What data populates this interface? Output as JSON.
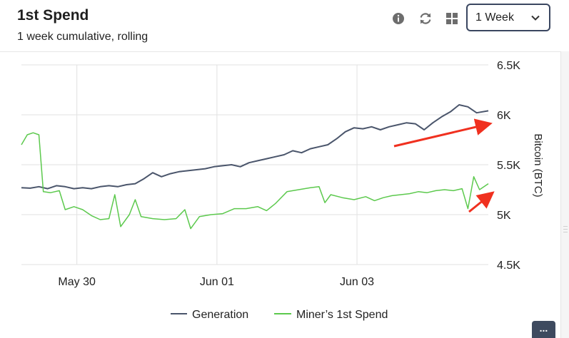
{
  "header": {
    "title": "1st Spend",
    "subtitle": "1 week cumulative, rolling",
    "period_select": {
      "value": "1 Week"
    },
    "icons": [
      "info-icon",
      "refresh-icon",
      "grid-icon",
      "chevron-down-icon"
    ]
  },
  "colors": {
    "generation": "#4a556b",
    "miners_first_spend": "#5cc94d",
    "annotation_arrow": "#f0301f",
    "grid": "#e2e2e2",
    "select_border": "#3a4660"
  },
  "more_button": {
    "label": "..."
  },
  "chart_data": {
    "type": "line",
    "title": "1st Spend",
    "subtitle": "1 week cumulative, rolling",
    "xlabel": "",
    "ylabel": "Bitcoin (BTC)",
    "ylim": [
      4500,
      6500
    ],
    "xlim": [
      "2022-05-29T05:00",
      "2022-06-04T21:00"
    ],
    "x_ticks": [
      {
        "x": "2022-05-30T00:00",
        "label": "May 30"
      },
      {
        "x": "2022-06-01T00:00",
        "label": "Jun 01"
      },
      {
        "x": "2022-06-03T00:00",
        "label": "Jun 03"
      }
    ],
    "y_ticks": [
      {
        "y": 4500,
        "label": "4.5K"
      },
      {
        "y": 5000,
        "label": "5K"
      },
      {
        "y": 5500,
        "label": "5.5K"
      },
      {
        "y": 6000,
        "label": "6K"
      },
      {
        "y": 6500,
        "label": "6.5K"
      }
    ],
    "grid": true,
    "legend": {
      "placement": "bottom-center"
    },
    "series": [
      {
        "name": "Generation",
        "color": "#4a556b",
        "points": [
          [
            "2022-05-29T05:00",
            5270
          ],
          [
            "2022-05-29T08:00",
            5265
          ],
          [
            "2022-05-29T11:00",
            5280
          ],
          [
            "2022-05-29T14:00",
            5260
          ],
          [
            "2022-05-29T17:00",
            5290
          ],
          [
            "2022-05-29T20:00",
            5280
          ],
          [
            "2022-05-29T23:00",
            5260
          ],
          [
            "2022-05-30T02:00",
            5270
          ],
          [
            "2022-05-30T05:00",
            5260
          ],
          [
            "2022-05-30T08:00",
            5280
          ],
          [
            "2022-05-30T11:00",
            5290
          ],
          [
            "2022-05-30T14:00",
            5280
          ],
          [
            "2022-05-30T17:00",
            5300
          ],
          [
            "2022-05-30T20:00",
            5310
          ],
          [
            "2022-05-30T23:00",
            5360
          ],
          [
            "2022-05-31T02:00",
            5420
          ],
          [
            "2022-05-31T05:00",
            5380
          ],
          [
            "2022-05-31T08:00",
            5410
          ],
          [
            "2022-05-31T11:00",
            5430
          ],
          [
            "2022-05-31T14:00",
            5440
          ],
          [
            "2022-05-31T17:00",
            5450
          ],
          [
            "2022-05-31T20:00",
            5460
          ],
          [
            "2022-05-31T23:00",
            5480
          ],
          [
            "2022-06-01T02:00",
            5490
          ],
          [
            "2022-06-01T05:00",
            5500
          ],
          [
            "2022-06-01T08:00",
            5480
          ],
          [
            "2022-06-01T11:00",
            5520
          ],
          [
            "2022-06-01T14:00",
            5540
          ],
          [
            "2022-06-01T17:00",
            5560
          ],
          [
            "2022-06-01T20:00",
            5580
          ],
          [
            "2022-06-01T23:00",
            5600
          ],
          [
            "2022-06-02T02:00",
            5640
          ],
          [
            "2022-06-02T05:00",
            5620
          ],
          [
            "2022-06-02T08:00",
            5660
          ],
          [
            "2022-06-02T11:00",
            5680
          ],
          [
            "2022-06-02T14:00",
            5700
          ],
          [
            "2022-06-02T17:00",
            5760
          ],
          [
            "2022-06-02T20:00",
            5830
          ],
          [
            "2022-06-02T23:00",
            5870
          ],
          [
            "2022-06-03T02:00",
            5860
          ],
          [
            "2022-06-03T05:00",
            5880
          ],
          [
            "2022-06-03T08:00",
            5850
          ],
          [
            "2022-06-03T11:00",
            5880
          ],
          [
            "2022-06-03T14:00",
            5900
          ],
          [
            "2022-06-03T17:00",
            5920
          ],
          [
            "2022-06-03T20:00",
            5910
          ],
          [
            "2022-06-03T23:00",
            5850
          ],
          [
            "2022-06-04T02:00",
            5920
          ],
          [
            "2022-06-04T05:00",
            5980
          ],
          [
            "2022-06-04T08:00",
            6030
          ],
          [
            "2022-06-04T11:00",
            6100
          ],
          [
            "2022-06-04T14:00",
            6080
          ],
          [
            "2022-06-04T17:00",
            6020
          ],
          [
            "2022-06-04T21:00",
            6040
          ]
        ]
      },
      {
        "name": "Miner’s 1st Spend",
        "color": "#5cc94d",
        "points": [
          [
            "2022-05-29T05:00",
            5700
          ],
          [
            "2022-05-29T07:00",
            5800
          ],
          [
            "2022-05-29T09:00",
            5820
          ],
          [
            "2022-05-29T11:00",
            5800
          ],
          [
            "2022-05-29T12:30",
            5230
          ],
          [
            "2022-05-29T15:00",
            5220
          ],
          [
            "2022-05-29T18:00",
            5240
          ],
          [
            "2022-05-29T20:00",
            5050
          ],
          [
            "2022-05-29T23:00",
            5080
          ],
          [
            "2022-05-30T02:00",
            5050
          ],
          [
            "2022-05-30T05:00",
            4990
          ],
          [
            "2022-05-30T08:00",
            4950
          ],
          [
            "2022-05-30T11:00",
            4960
          ],
          [
            "2022-05-30T13:00",
            5200
          ],
          [
            "2022-05-30T15:00",
            4880
          ],
          [
            "2022-05-30T18:00",
            5000
          ],
          [
            "2022-05-30T20:00",
            5150
          ],
          [
            "2022-05-30T22:00",
            4980
          ],
          [
            "2022-05-31T02:00",
            4960
          ],
          [
            "2022-05-31T06:00",
            4950
          ],
          [
            "2022-05-31T10:00",
            4960
          ],
          [
            "2022-05-31T13:00",
            5050
          ],
          [
            "2022-05-31T15:00",
            4860
          ],
          [
            "2022-05-31T18:00",
            4980
          ],
          [
            "2022-05-31T22:00",
            5000
          ],
          [
            "2022-06-01T02:00",
            5010
          ],
          [
            "2022-06-01T06:00",
            5060
          ],
          [
            "2022-06-01T10:00",
            5060
          ],
          [
            "2022-06-01T14:00",
            5080
          ],
          [
            "2022-06-01T17:00",
            5040
          ],
          [
            "2022-06-01T20:00",
            5110
          ],
          [
            "2022-06-02T00:00",
            5230
          ],
          [
            "2022-06-02T04:00",
            5250
          ],
          [
            "2022-06-02T08:00",
            5270
          ],
          [
            "2022-06-02T11:00",
            5280
          ],
          [
            "2022-06-02T13:00",
            5120
          ],
          [
            "2022-06-02T15:00",
            5200
          ],
          [
            "2022-06-02T19:00",
            5170
          ],
          [
            "2022-06-02T23:00",
            5150
          ],
          [
            "2022-06-03T03:00",
            5180
          ],
          [
            "2022-06-03T06:00",
            5140
          ],
          [
            "2022-06-03T09:00",
            5170
          ],
          [
            "2022-06-03T12:00",
            5190
          ],
          [
            "2022-06-03T15:00",
            5200
          ],
          [
            "2022-06-03T18:00",
            5210
          ],
          [
            "2022-06-03T21:00",
            5230
          ],
          [
            "2022-06-04T00:00",
            5220
          ],
          [
            "2022-06-04T03:00",
            5240
          ],
          [
            "2022-06-04T06:00",
            5250
          ],
          [
            "2022-06-04T09:00",
            5240
          ],
          [
            "2022-06-04T12:00",
            5260
          ],
          [
            "2022-06-04T14:00",
            5060
          ],
          [
            "2022-06-04T16:00",
            5380
          ],
          [
            "2022-06-04T18:00",
            5250
          ],
          [
            "2022-06-04T21:00",
            5310
          ]
        ]
      }
    ]
  }
}
